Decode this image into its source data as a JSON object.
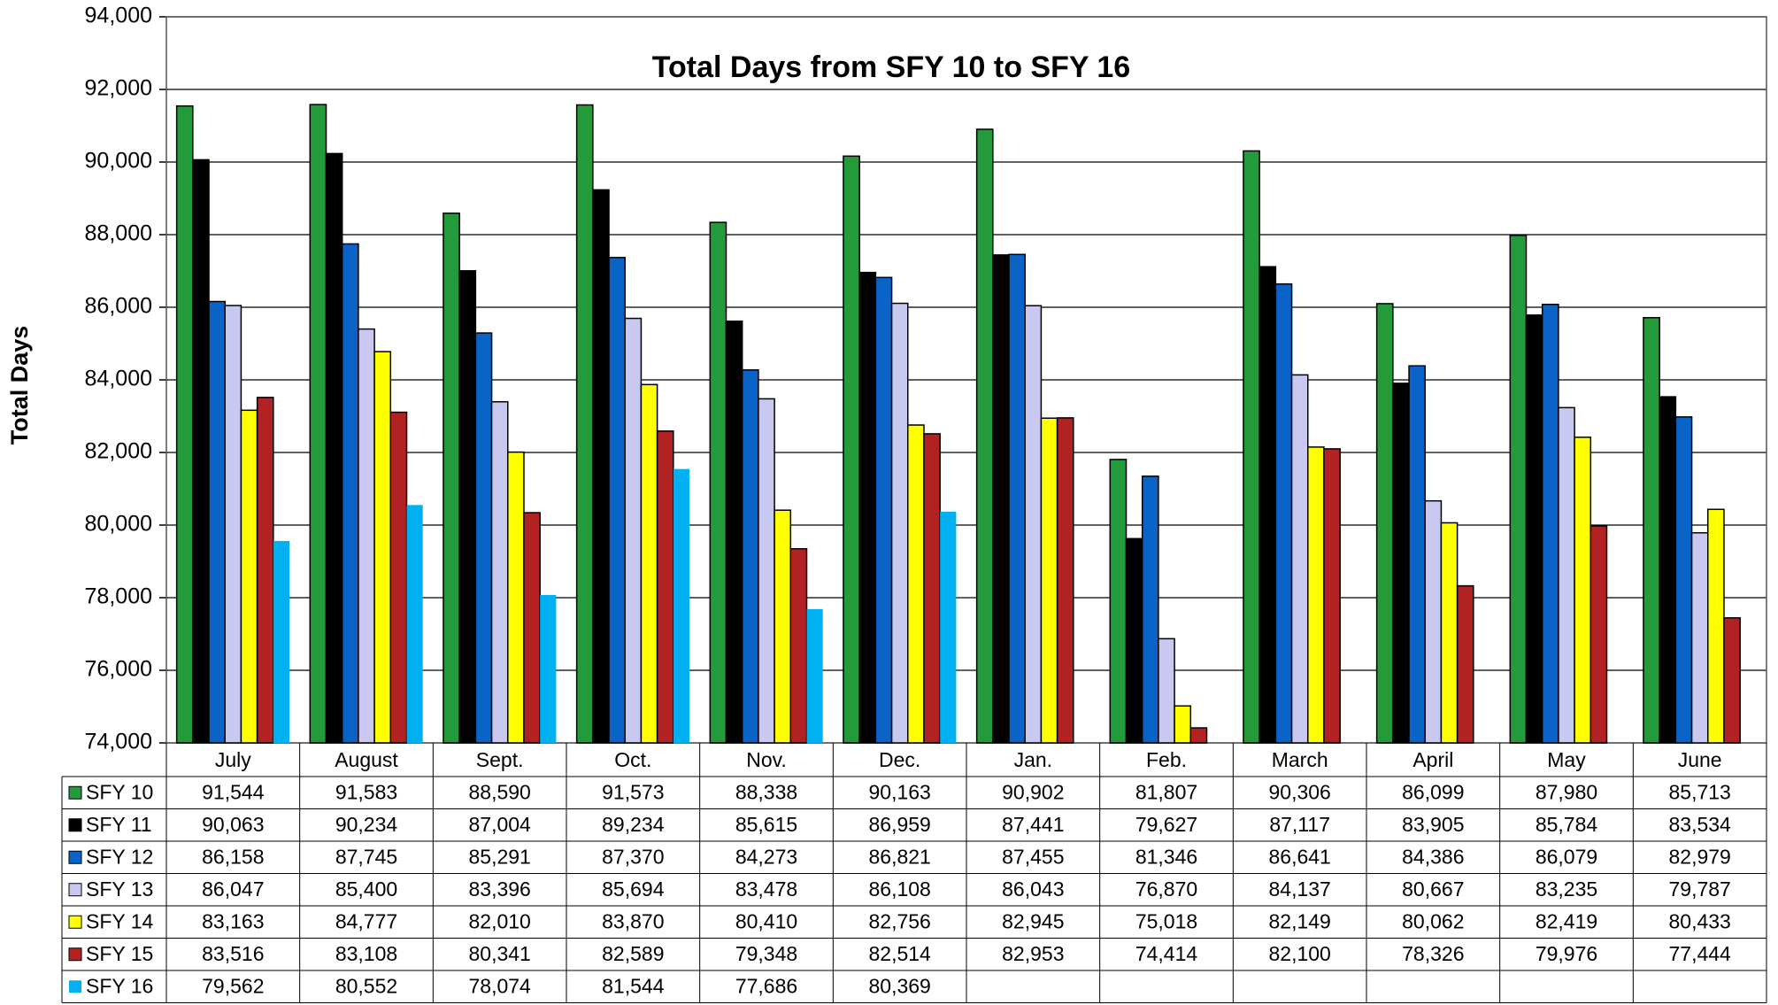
{
  "chart_data": {
    "type": "bar",
    "title": "Total Days from SFY 10 to SFY 16",
    "y_label": "Total Days",
    "categories": [
      "July",
      "August",
      "Sept.",
      "Oct.",
      "Nov.",
      "Dec.",
      "Jan.",
      "Feb.",
      "March",
      "April",
      "May",
      "June"
    ],
    "ylim": [
      74000,
      94000
    ],
    "yticks": [
      {
        "value": 74000,
        "label": "74,000"
      },
      {
        "value": 76000,
        "label": "76,000"
      },
      {
        "value": 78000,
        "label": "78,000"
      },
      {
        "value": 80000,
        "label": "80,000"
      },
      {
        "value": 82000,
        "label": "82,000"
      },
      {
        "value": 84000,
        "label": "84,000"
      },
      {
        "value": 86000,
        "label": "86,000"
      },
      {
        "value": 88000,
        "label": "88,000"
      },
      {
        "value": 90000,
        "label": "90,000"
      },
      {
        "value": 92000,
        "label": "92,000"
      },
      {
        "value": 94000,
        "label": "94,000"
      }
    ],
    "grid": true,
    "series": [
      {
        "name": "SFY 10",
        "color": "#239b3a",
        "values": [
          91544,
          91583,
          88590,
          91573,
          88338,
          90163,
          90902,
          81807,
          90306,
          86099,
          87980,
          85713
        ],
        "value_labels": [
          "91,544",
          "91,583",
          "88,590",
          "91,573",
          "88,338",
          "90,163",
          "90,902",
          "81,807",
          "90,306",
          "86,099",
          "87,980",
          "85,713"
        ]
      },
      {
        "name": "SFY 11",
        "color": "#000000",
        "values": [
          90063,
          90234,
          87004,
          89234,
          85615,
          86959,
          87441,
          79627,
          87117,
          83905,
          85784,
          83534
        ],
        "value_labels": [
          "90,063",
          "90,234",
          "87,004",
          "89,234",
          "85,615",
          "86,959",
          "87,441",
          "79,627",
          "87,117",
          "83,905",
          "85,784",
          "83,534"
        ]
      },
      {
        "name": "SFY 12",
        "color": "#0a64c8",
        "values": [
          86158,
          87745,
          85291,
          87370,
          84273,
          86821,
          87455,
          81346,
          86641,
          84386,
          86079,
          82979
        ],
        "value_labels": [
          "86,158",
          "87,745",
          "85,291",
          "87,370",
          "84,273",
          "86,821",
          "87,455",
          "81,346",
          "86,641",
          "84,386",
          "86,079",
          "82,979"
        ]
      },
      {
        "name": "SFY 13",
        "color": "#c8c8f0",
        "values": [
          86047,
          85400,
          83396,
          85694,
          83478,
          86108,
          86043,
          76870,
          84137,
          80667,
          83235,
          79787
        ],
        "value_labels": [
          "86,047",
          "85,400",
          "83,396",
          "85,694",
          "83,478",
          "86,108",
          "86,043",
          "76,870",
          "84,137",
          "80,667",
          "83,235",
          "79,787"
        ]
      },
      {
        "name": "SFY 14",
        "color": "#ffff00",
        "values": [
          83163,
          84777,
          82010,
          83870,
          80410,
          82756,
          82945,
          75018,
          82149,
          80062,
          82419,
          80433
        ],
        "value_labels": [
          "83,163",
          "84,777",
          "82,010",
          "83,870",
          "80,410",
          "82,756",
          "82,945",
          "75,018",
          "82,149",
          "80,062",
          "82,419",
          "80,433"
        ]
      },
      {
        "name": "SFY 15",
        "color": "#b22222",
        "values": [
          83516,
          83108,
          80341,
          82589,
          79348,
          82514,
          82953,
          74414,
          82100,
          78326,
          79976,
          77444
        ],
        "value_labels": [
          "83,516",
          "83,108",
          "80,341",
          "82,589",
          "79,348",
          "82,514",
          "82,953",
          "74,414",
          "82,100",
          "78,326",
          "79,976",
          "77,444"
        ]
      },
      {
        "name": "SFY 16",
        "color": "#00b0f0",
        "values": [
          79562,
          80552,
          78074,
          81544,
          77686,
          80369,
          null,
          null,
          null,
          null,
          null,
          null
        ],
        "value_labels": [
          "79,562",
          "80,552",
          "78,074",
          "81,544",
          "77,686",
          "80,369",
          null,
          null,
          null,
          null,
          null,
          null
        ]
      }
    ]
  }
}
